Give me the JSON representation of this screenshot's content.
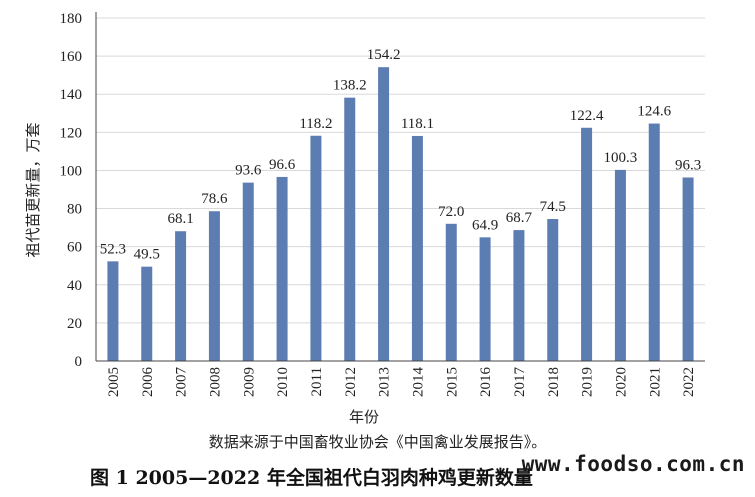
{
  "chart_data": {
    "type": "bar",
    "categories": [
      "2005",
      "2006",
      "2007",
      "2008",
      "2009",
      "2010",
      "2011",
      "2012",
      "2013",
      "2014",
      "2015",
      "2016",
      "2017",
      "2018",
      "2019",
      "2020",
      "2021",
      "2022"
    ],
    "values": [
      52.3,
      49.5,
      68.1,
      78.6,
      93.6,
      96.6,
      118.2,
      138.2,
      154.2,
      118.1,
      72.0,
      64.9,
      68.7,
      74.5,
      122.4,
      100.3,
      124.6,
      96.3
    ],
    "value_labels": [
      "52.3",
      "49.5",
      "68.1",
      "78.6",
      "93.6",
      "96.6",
      "118.2",
      "138.2",
      "154.2",
      "118.1",
      "72.0",
      "64.9",
      "68.7",
      "74.5",
      "122.4",
      "100.3",
      "124.6",
      "96.3"
    ],
    "ylim": [
      0,
      180
    ],
    "yticks": [
      0,
      20,
      40,
      60,
      80,
      100,
      120,
      140,
      160,
      180
    ],
    "xlabel": "年份",
    "ylabel": "祖代苗更新量，万套",
    "bar_color": "#5b7db1",
    "grid": true
  },
  "source_note": "数据来源于中国畜牧业协会《中国禽业发展报告》。",
  "caption": "图 1 2005—2022 年全国祖代白羽肉种鸡更新数量",
  "watermark": "www.foodso.com.cn"
}
